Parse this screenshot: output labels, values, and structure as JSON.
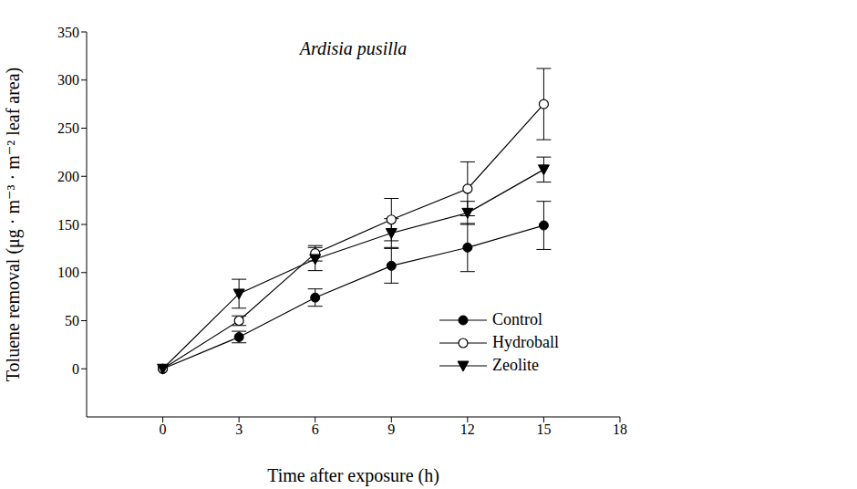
{
  "chart_data": {
    "type": "line",
    "title": "Ardisia pusilla",
    "x_label": "Time after exposure (h)",
    "y_label": "Toluene removal (μg · m⁻³ · m⁻² leaf area)",
    "x": [
      0,
      3,
      6,
      9,
      12,
      15
    ],
    "xlim": [
      -3,
      18
    ],
    "xticks": [
      0,
      3,
      6,
      9,
      12,
      15,
      18
    ],
    "ylim": [
      -50,
      350
    ],
    "yticks": [
      0,
      50,
      100,
      150,
      200,
      250,
      300,
      350
    ],
    "legend": "lower right",
    "grid": false,
    "series": [
      {
        "name": "Control",
        "color": "#000000",
        "marker": "circle",
        "line_style": "solid",
        "values": [
          0,
          33,
          74,
          107,
          126,
          149
        ],
        "errors": [
          0,
          6,
          9,
          18,
          25,
          25
        ]
      },
      {
        "name": "Hydroball",
        "color": "#000000",
        "marker": "open_circle",
        "line_style": "solid",
        "values": [
          0,
          50,
          120,
          155,
          187,
          275
        ],
        "errors": [
          0,
          5,
          8,
          22,
          28,
          37
        ]
      },
      {
        "name": "Zeolite",
        "color": "#000000",
        "marker": "triangle_down",
        "line_style": "solid",
        "values": [
          0,
          78,
          114,
          141,
          162,
          207
        ],
        "errors": [
          0,
          15,
          12,
          15,
          12,
          13
        ]
      }
    ]
  }
}
